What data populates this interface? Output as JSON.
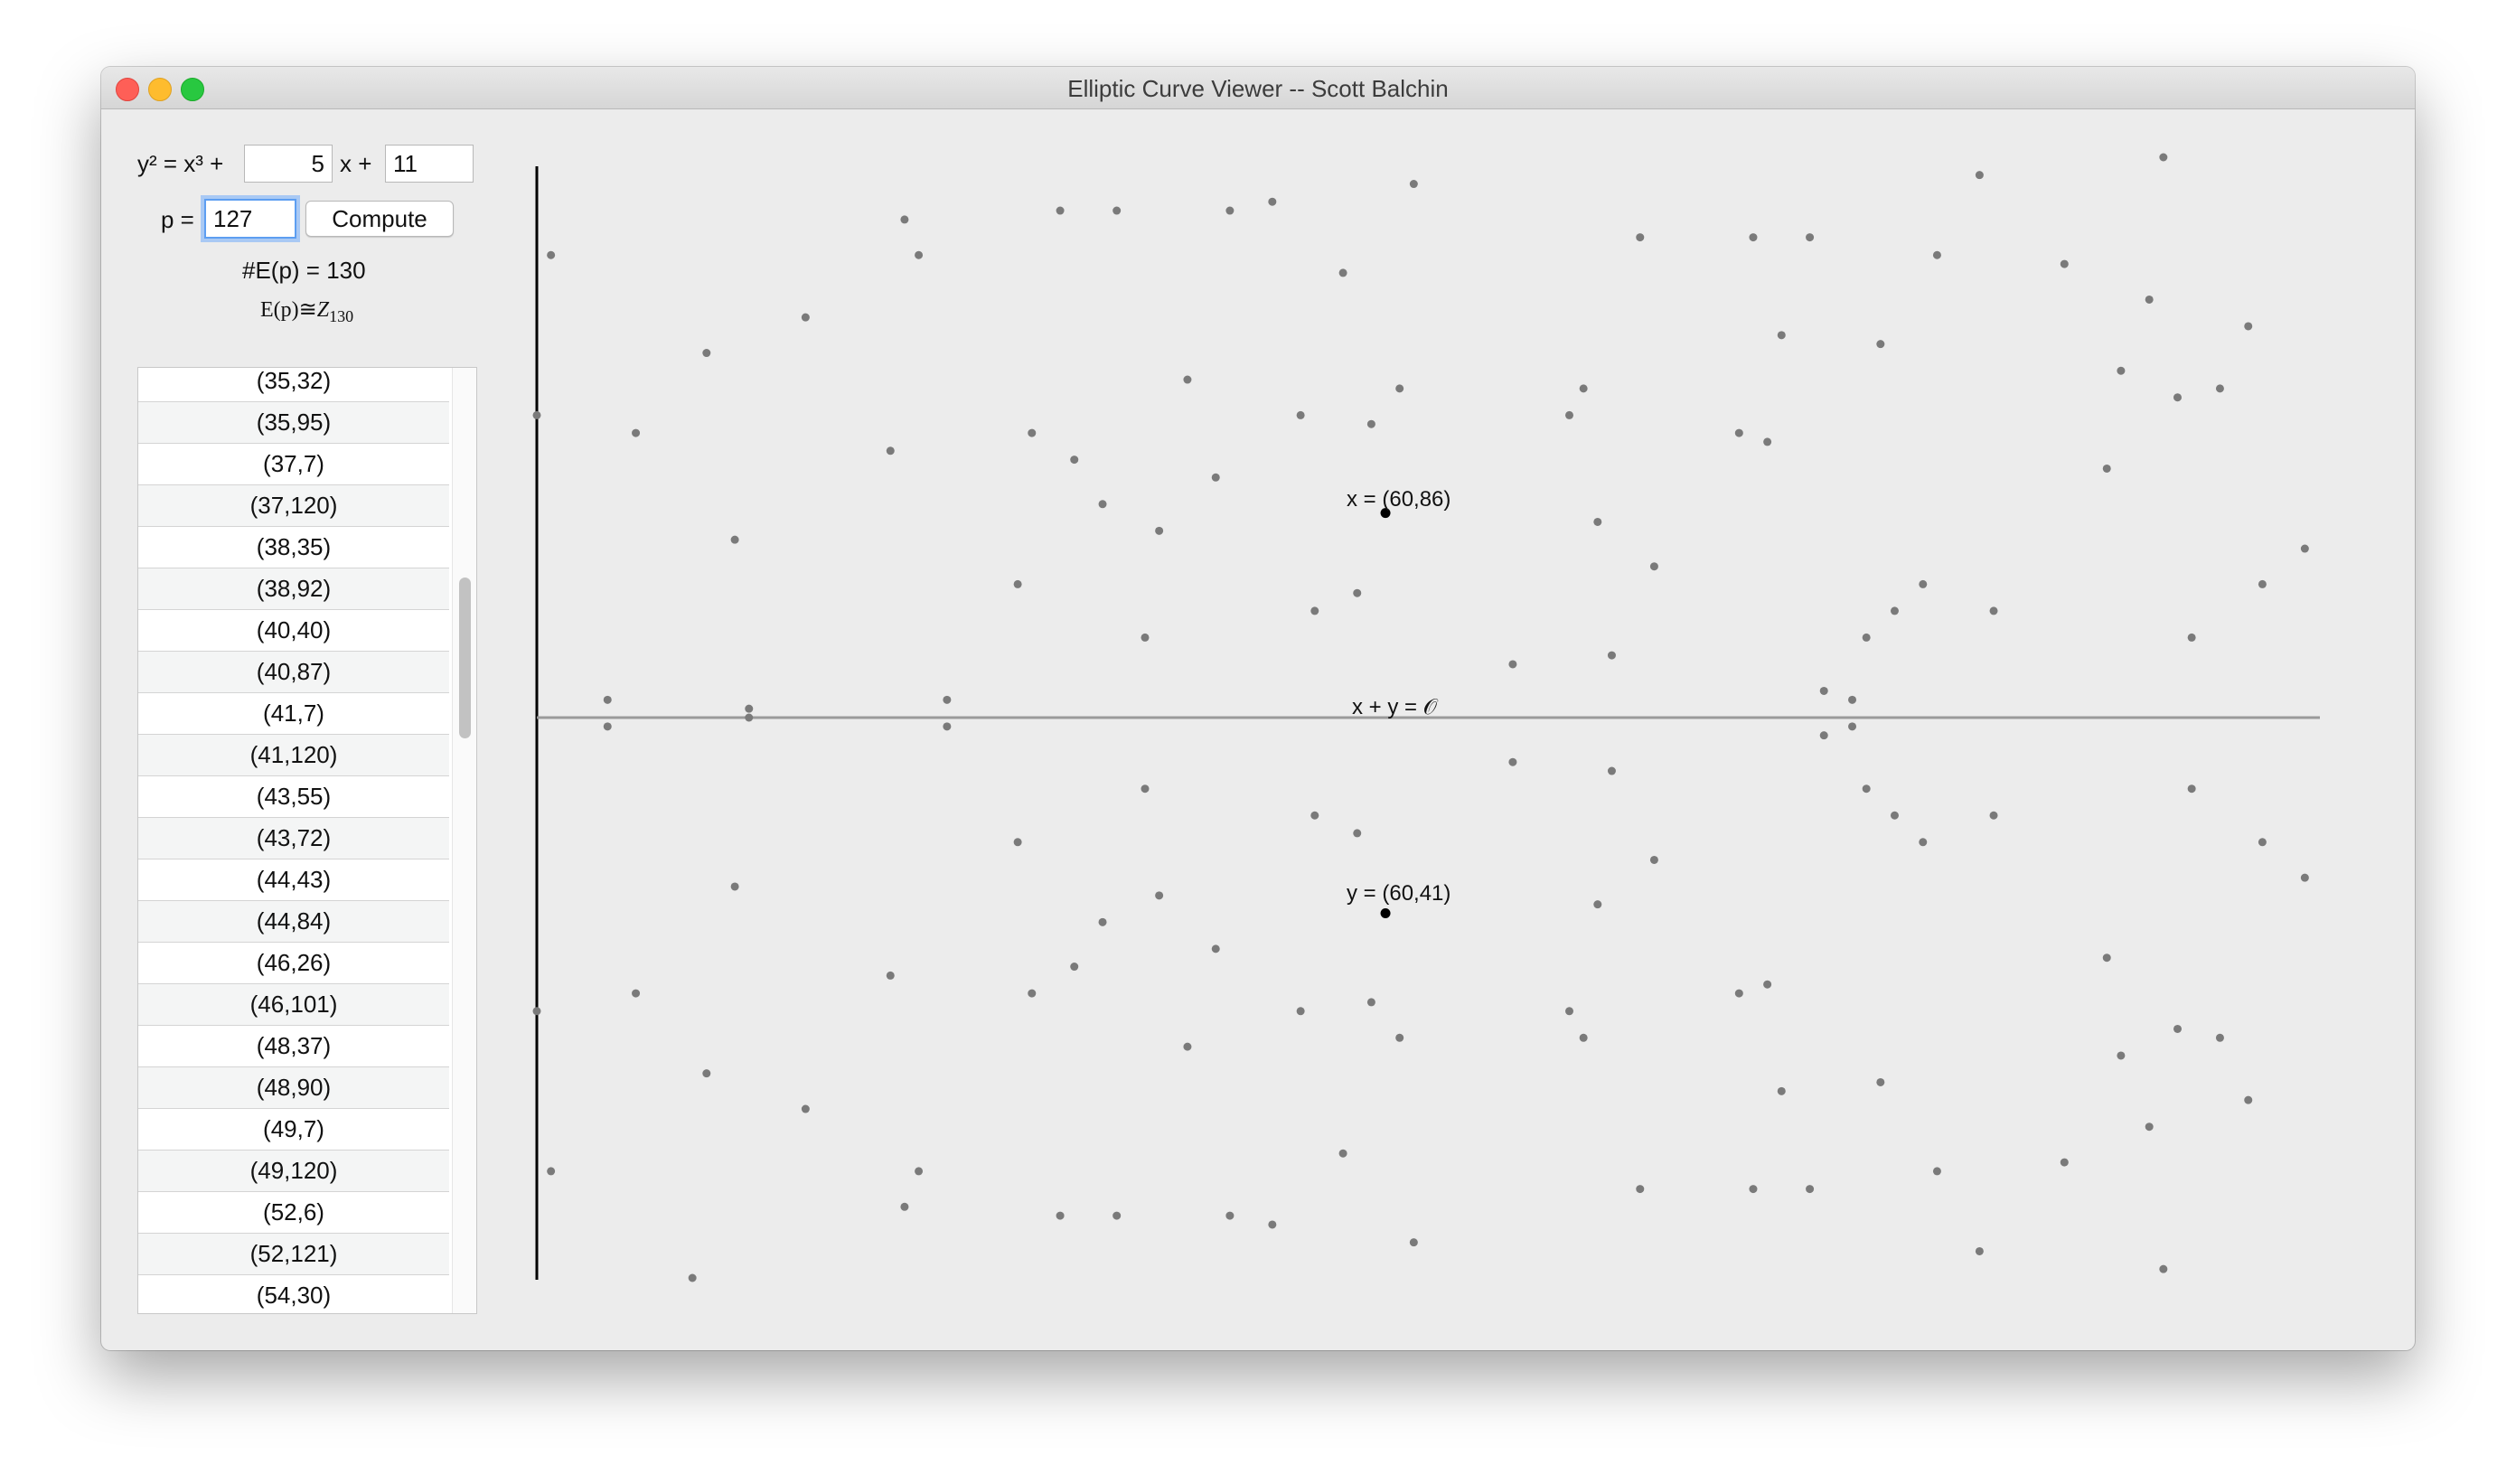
{
  "window": {
    "title": "Elliptic Curve Viewer -- Scott Balchin"
  },
  "equation": {
    "lhs": "y² = x³ +",
    "a_value": "5",
    "mid": "x +",
    "b_value": "11"
  },
  "prime": {
    "label": "p =",
    "value": "127"
  },
  "compute_label": "Compute",
  "order_text": "#E(p) = 130",
  "group_text": {
    "prefix": "E(p)≅",
    "group": "Z",
    "sub": "130"
  },
  "points_list": [
    "(35,32)",
    "(35,95)",
    "(37,7)",
    "(37,120)",
    "(38,35)",
    "(38,92)",
    "(40,40)",
    "(40,87)",
    "(41,7)",
    "(41,120)",
    "(43,55)",
    "(43,72)",
    "(44,43)",
    "(44,84)",
    "(46,26)",
    "(46,101)",
    "(48,37)",
    "(48,90)",
    "(49,7)",
    "(49,120)",
    "(52,6)",
    "(52,121)",
    "(54,30)"
  ],
  "selected": {
    "x_label": "x = (60,86)",
    "y_label": "y = (60,41)",
    "sum_label": "x + y = 𝒪"
  },
  "colors": {
    "point": "#7a7a7a",
    "selected_point": "#000000",
    "axis": "#000000",
    "mid_line": "#9a9a9a"
  },
  "chart_data": {
    "type": "scatter",
    "modulus": 127,
    "curve": {
      "a": 5,
      "b": 11
    },
    "xlim": [
      0,
      126
    ],
    "ylim": [
      0,
      126
    ],
    "selected_points": [
      {
        "x": 60,
        "y": 86
      },
      {
        "x": 60,
        "y": 41
      }
    ]
  }
}
